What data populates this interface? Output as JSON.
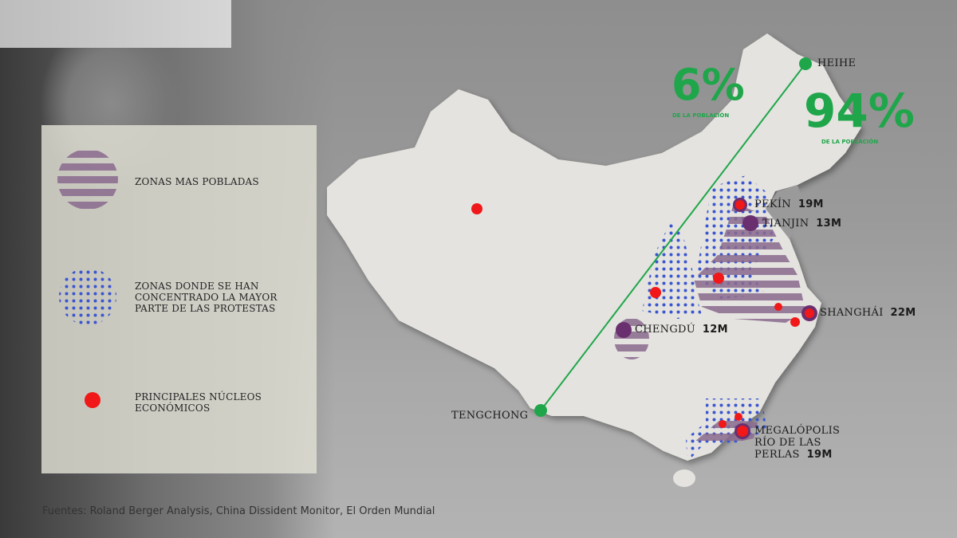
{
  "legend": {
    "populated": "ZONAS MAS POBLADAS",
    "protests": "ZONAS DONDE SE HAN CONCENTRADO LA MAYOR PARTE DE LAS PROTESTAS",
    "economic": "PRINCIPALES NÚCLEOS ECONÓMICOS"
  },
  "divide": {
    "west": {
      "value": "6%",
      "caption": "DE LA POBLACIÓN"
    },
    "east": {
      "value": "94%",
      "caption": "DE LA POBLACIÓN"
    },
    "endpoints": [
      "HEIHE",
      "TENGCHONG"
    ]
  },
  "cities": [
    {
      "name": "PEKÍN",
      "population": "19M"
    },
    {
      "name": "TIANJIN",
      "population": "13M"
    },
    {
      "name": "SHANGHÁI",
      "population": "22M"
    },
    {
      "name": "CHENGDÚ",
      "population": "12M"
    },
    {
      "name_lines": [
        "MEGALÓPOLIS",
        "RÍO DE LAS",
        "PERLAS"
      ],
      "population": "19M"
    }
  ],
  "colors": {
    "populated": "#8a6a8e",
    "protests": "#3a55d0",
    "economic": "#f01818",
    "divide": "#1fa64a",
    "city": "#6a2f6e"
  },
  "source": "Fuentes: Roland Berger Analysis, China Dissident Monitor, El Orden Mundial"
}
